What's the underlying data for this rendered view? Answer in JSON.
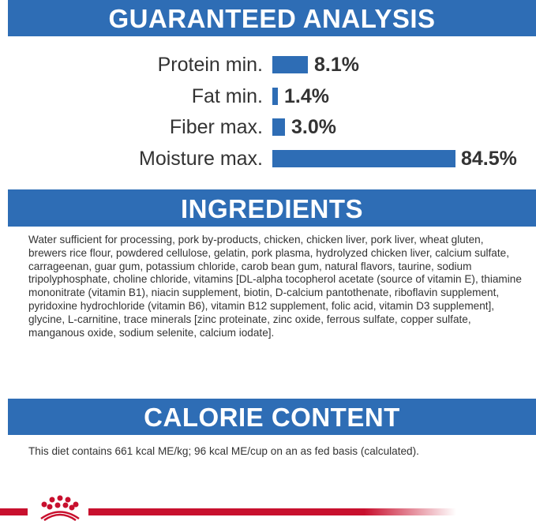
{
  "sections": {
    "analysis": "GUARANTEED ANALYSIS",
    "ingredients": "INGREDIENTS",
    "calorie": "CALORIE CONTENT"
  },
  "analysis": [
    {
      "label": "Protein min.",
      "value": "8.1%"
    },
    {
      "label": "Fat min.",
      "value": "1.4%"
    },
    {
      "label": "Fiber max.",
      "value": "3.0%"
    },
    {
      "label": "Moisture max.",
      "value": "84.5%"
    }
  ],
  "ingredients_text": "Water sufficient for processing, pork by-products, chicken, chicken liver, pork liver, wheat gluten, brewers rice flour, powdered cellulose, gelatin, pork plasma, hydrolyzed chicken liver, calcium sulfate, carrageenan, guar gum, potassium chloride, carob bean gum, natural flavors, taurine, sodium tripolyphosphate, choline chloride, vitamins [DL-alpha tocopherol acetate (source of vitamin E), thiamine mononitrate (vitamin B1), niacin supplement, biotin, D-calcium pantothenate, riboflavin supplement, pyridoxine hydrochloride (vitamin B6), vitamin B12 supplement, folic acid, vitamin D3 supplement], glycine, L-carnitine, trace minerals [zinc proteinate, zinc oxide, ferrous sulfate, copper sulfate, manganous oxide, sodium selenite, calcium iodate].",
  "calorie_text": "This diet contains 661 kcal ME/kg; 96 kcal ME/cup on an as fed basis (calculated).",
  "colors": {
    "header": "#2e6db5",
    "brand_red": "#c8102e"
  },
  "logo": "royal-crown-logo"
}
